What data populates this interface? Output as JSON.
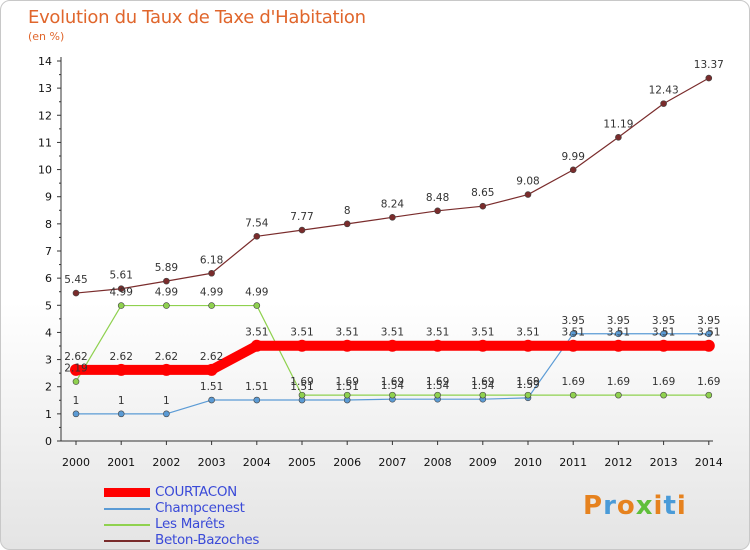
{
  "header": {
    "title": "Evolution du Taux de Taxe d'Habitation",
    "unit": "(en %)"
  },
  "brand": {
    "text": "Proxiti",
    "letters": [
      "P",
      "r",
      "o",
      "x",
      "i",
      "t",
      "i"
    ]
  },
  "chart_data": {
    "type": "line",
    "title": "Evolution du Taux de Taxe d'Habitation",
    "ylabel": "(en %)",
    "xlabel": "",
    "ylim": [
      0,
      14
    ],
    "yticks": [
      "0",
      "1",
      "2",
      "3",
      "4",
      "5",
      "6",
      "7",
      "8",
      "9",
      "10",
      "11",
      "12",
      "13",
      "14"
    ],
    "categories": [
      "2000",
      "2001",
      "2002",
      "2003",
      "2004",
      "2005",
      "2006",
      "2007",
      "2008",
      "2009",
      "2010",
      "2011",
      "2012",
      "2013",
      "2014"
    ],
    "legend_position": "bottom-left",
    "series": [
      {
        "name": "COURTACON",
        "color": "#ff0000",
        "highlight": true,
        "values": [
          2.62,
          2.62,
          2.62,
          2.62,
          3.51,
          3.51,
          3.51,
          3.51,
          3.51,
          3.51,
          3.51,
          3.51,
          3.51,
          3.51,
          3.51
        ],
        "labels": [
          "2.62",
          "2.62",
          "2.62",
          "2.62",
          "3.51",
          "3.51",
          "3.51",
          "3.51",
          "3.51",
          "3.51",
          "3.51",
          "3.51",
          "3.51",
          "3.51",
          "3.51"
        ]
      },
      {
        "name": "Champcenest",
        "color": "#5b9bd5",
        "highlight": false,
        "values": [
          1,
          1,
          1,
          1.51,
          1.51,
          1.51,
          1.51,
          1.54,
          1.54,
          1.54,
          1.59,
          3.95,
          3.95,
          3.95,
          3.95
        ],
        "labels": [
          "1",
          "1",
          "1",
          "1.51",
          "1.51",
          "1.51",
          "1.51",
          "1.54",
          "1.54",
          "1.54",
          "1.59",
          "3.95",
          "3.95",
          "3.95",
          "3.95"
        ]
      },
      {
        "name": "Les Marêts",
        "color": "#8fd14f",
        "highlight": false,
        "values": [
          2.19,
          4.99,
          4.99,
          4.99,
          4.99,
          1.69,
          1.69,
          1.69,
          1.69,
          1.69,
          1.69,
          1.69,
          1.69,
          1.69,
          1.69
        ],
        "labels": [
          "2.19",
          "4.99",
          "4.99",
          "4.99",
          "4.99",
          "1.69",
          "1.69",
          "1.69",
          "1.69",
          "1.69",
          "1.69",
          "1.69",
          "1.69",
          "1.69",
          "1.69"
        ]
      },
      {
        "name": "Beton-Bazoches",
        "color": "#7a2c2c",
        "highlight": false,
        "values": [
          5.45,
          5.61,
          5.89,
          6.18,
          7.54,
          7.77,
          8,
          8.24,
          8.48,
          8.65,
          9.08,
          9.99,
          11.19,
          12.43,
          13.37
        ],
        "labels": [
          "5.45",
          "5.61",
          "5.89",
          "6.18",
          "7.54",
          "7.77",
          "8",
          "8.24",
          "8.48",
          "8.65",
          "9.08",
          "9.99",
          "11.19",
          "12.43",
          "13.37"
        ]
      }
    ]
  }
}
